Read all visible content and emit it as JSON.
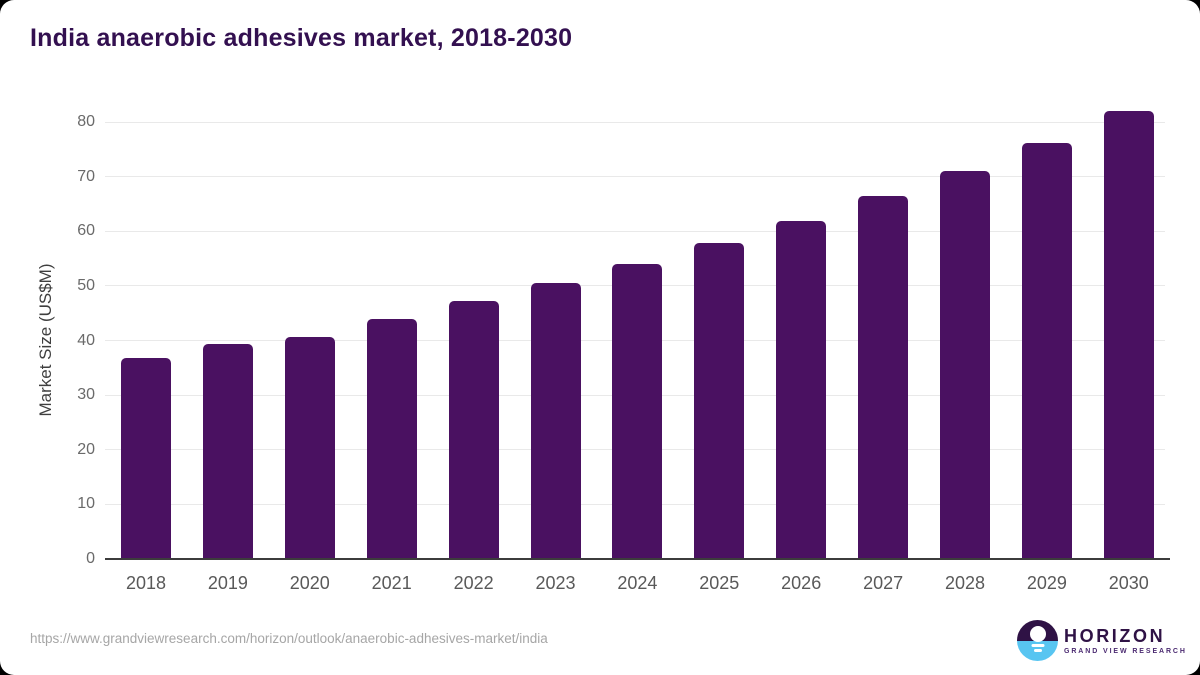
{
  "page": {
    "title": "India anaerobic adhesives market, 2018-2030",
    "source_url": "https://www.grandviewresearch.com/horizon/outlook/anaerobic-adhesives-market/india"
  },
  "chart_data": {
    "type": "bar",
    "title": "India anaerobic adhesives market, 2018-2030",
    "categories": [
      "2018",
      "2019",
      "2020",
      "2021",
      "2022",
      "2023",
      "2024",
      "2025",
      "2026",
      "2027",
      "2028",
      "2029",
      "2030"
    ],
    "values": [
      36.8,
      39.3,
      40.7,
      43.9,
      47.2,
      50.5,
      54.0,
      57.8,
      61.8,
      66.4,
      71.1,
      76.2,
      82.0
    ],
    "xlabel": "",
    "ylabel": "Market Size (US$M)",
    "ylim": [
      0,
      80
    ],
    "ytick_step": 10,
    "grid": true,
    "legend_position": "none",
    "bar_color": "#4a1161",
    "units": "US$M"
  },
  "branding": {
    "logo_name": "HORIZON",
    "logo_sub": "GRAND VIEW RESEARCH",
    "logo_dark_color": "#2f1245",
    "logo_blue_color": "#58c5f1"
  }
}
